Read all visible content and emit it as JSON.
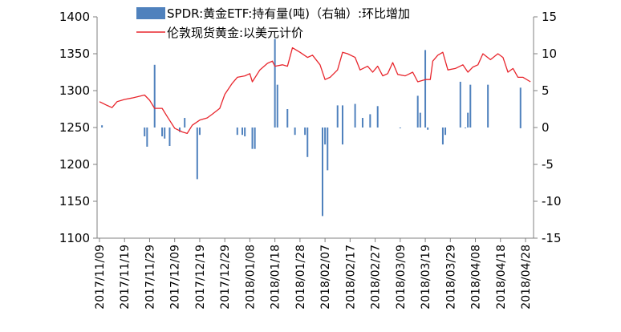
{
  "chart_data": {
    "type": "bar",
    "title": "",
    "xlabel": "",
    "ylabel": "",
    "grid": false,
    "legend_position": "top",
    "left_axis": {
      "ylim": [
        1100,
        1400
      ],
      "ticks": [
        1100,
        1150,
        1200,
        1250,
        1300,
        1350,
        1400
      ]
    },
    "right_axis": {
      "ylim": [
        -15,
        15
      ],
      "ticks": [
        -15,
        -10,
        -5,
        0,
        5,
        10,
        15
      ]
    },
    "x_tick_labels": [
      "2017/11/09",
      "2017/11/19",
      "2017/11/29",
      "2017/12/09",
      "2017/12/19",
      "2017/12/29",
      "2018/01/08",
      "2018/01/18",
      "2018/01/28",
      "2018/02/07",
      "2018/02/17",
      "2018/02/27",
      "2018/03/09",
      "2018/03/19",
      "2018/03/29",
      "2018/04/08",
      "2018/04/18",
      "2018/04/28"
    ],
    "series": [
      {
        "name": "SPDR:黄金ETF:持有量(吨)（右轴）:环比增加",
        "type": "bar",
        "axis": "right",
        "color": "#4f81bd",
        "points": [
          [
            "2017/11/10",
            0.3
          ],
          [
            "2017/11/27",
            -1.2
          ],
          [
            "2017/11/28",
            -2.6
          ],
          [
            "2017/12/01",
            8.5
          ],
          [
            "2017/12/04",
            -1.2
          ],
          [
            "2017/12/05",
            -1.5
          ],
          [
            "2017/12/07",
            -2.5
          ],
          [
            "2017/12/11",
            -0.6
          ],
          [
            "2017/12/13",
            1.3
          ],
          [
            "2017/12/18",
            -7.0
          ],
          [
            "2017/12/19",
            -1.0
          ],
          [
            "2018/01/03",
            -1.0
          ],
          [
            "2018/01/05",
            -1.0
          ],
          [
            "2018/01/06",
            -1.2
          ],
          [
            "2018/01/09",
            -2.9
          ],
          [
            "2018/01/10",
            -2.9
          ],
          [
            "2018/01/18",
            12.0
          ],
          [
            "2018/01/19",
            5.8
          ],
          [
            "2018/01/23",
            2.5
          ],
          [
            "2018/01/26",
            -1.0
          ],
          [
            "2018/01/30",
            -1.0
          ],
          [
            "2018/01/31",
            -4.0
          ],
          [
            "2018/02/06",
            -12.0
          ],
          [
            "2018/02/07",
            -2.3
          ],
          [
            "2018/02/08",
            -5.8
          ],
          [
            "2018/02/12",
            3.0
          ],
          [
            "2018/02/14",
            -2.3
          ],
          [
            "2018/02/14",
            3.0
          ],
          [
            "2018/02/19",
            3.2
          ],
          [
            "2018/02/22",
            1.3
          ],
          [
            "2018/02/25",
            1.8
          ],
          [
            "2018/02/28",
            2.9
          ],
          [
            "2018/03/09",
            -0.1
          ],
          [
            "2018/03/16",
            4.3
          ],
          [
            "2018/03/17",
            2.0
          ],
          [
            "2018/03/19",
            10.5
          ],
          [
            "2018/03/20",
            -0.3
          ],
          [
            "2018/03/26",
            -2.3
          ],
          [
            "2018/03/27",
            -1.0
          ],
          [
            "2018/04/02",
            6.2
          ],
          [
            "2018/04/04",
            -0.1
          ],
          [
            "2018/04/05",
            2.0
          ],
          [
            "2018/04/06",
            5.8
          ],
          [
            "2018/04/13",
            5.8
          ],
          [
            "2018/04/26",
            5.4
          ],
          [
            "2018/04/26",
            -0.1
          ]
        ]
      },
      {
        "name": "伦敦现货黄金:以美元计价",
        "type": "line",
        "axis": "left",
        "color": "#e8262d",
        "points": [
          [
            "2017/11/09",
            1285
          ],
          [
            "2017/11/12",
            1280
          ],
          [
            "2017/11/14",
            1277
          ],
          [
            "2017/11/16",
            1285
          ],
          [
            "2017/11/19",
            1288
          ],
          [
            "2017/11/22",
            1290
          ],
          [
            "2017/11/27",
            1294
          ],
          [
            "2017/11/29",
            1287
          ],
          [
            "2017/12/01",
            1276
          ],
          [
            "2017/12/04",
            1276
          ],
          [
            "2017/12/06",
            1265
          ],
          [
            "2017/12/09",
            1249
          ],
          [
            "2017/12/12",
            1244
          ],
          [
            "2017/12/14",
            1242
          ],
          [
            "2017/12/16",
            1253
          ],
          [
            "2017/12/19",
            1260
          ],
          [
            "2017/12/22",
            1263
          ],
          [
            "2017/12/24",
            1268
          ],
          [
            "2017/12/27",
            1276
          ],
          [
            "2017/12/29",
            1295
          ],
          [
            "2018/01/01",
            1310
          ],
          [
            "2018/01/03",
            1318
          ],
          [
            "2018/01/06",
            1320
          ],
          [
            "2018/01/08",
            1323
          ],
          [
            "2018/01/09",
            1312
          ],
          [
            "2018/01/12",
            1328
          ],
          [
            "2018/01/15",
            1337
          ],
          [
            "2018/01/17",
            1340
          ],
          [
            "2018/01/18",
            1333
          ],
          [
            "2018/01/21",
            1335
          ],
          [
            "2018/01/23",
            1333
          ],
          [
            "2018/01/25",
            1358
          ],
          [
            "2018/01/28",
            1352
          ],
          [
            "2018/01/31",
            1345
          ],
          [
            "2018/02/02",
            1348
          ],
          [
            "2018/02/05",
            1335
          ],
          [
            "2018/02/07",
            1315
          ],
          [
            "2018/02/09",
            1318
          ],
          [
            "2018/02/12",
            1328
          ],
          [
            "2018/02/14",
            1352
          ],
          [
            "2018/02/16",
            1350
          ],
          [
            "2018/02/19",
            1345
          ],
          [
            "2018/02/21",
            1328
          ],
          [
            "2018/02/24",
            1333
          ],
          [
            "2018/02/26",
            1325
          ],
          [
            "2018/02/28",
            1333
          ],
          [
            "2018/03/02",
            1320
          ],
          [
            "2018/03/04",
            1323
          ],
          [
            "2018/03/06",
            1338
          ],
          [
            "2018/03/08",
            1322
          ],
          [
            "2018/03/11",
            1320
          ],
          [
            "2018/03/14",
            1325
          ],
          [
            "2018/03/16",
            1312
          ],
          [
            "2018/03/19",
            1315
          ],
          [
            "2018/03/21",
            1315
          ],
          [
            "2018/03/22",
            1340
          ],
          [
            "2018/03/24",
            1348
          ],
          [
            "2018/03/26",
            1352
          ],
          [
            "2018/03/28",
            1328
          ],
          [
            "2018/03/31",
            1330
          ],
          [
            "2018/04/03",
            1335
          ],
          [
            "2018/04/05",
            1325
          ],
          [
            "2018/04/07",
            1332
          ],
          [
            "2018/04/09",
            1335
          ],
          [
            "2018/04/11",
            1350
          ],
          [
            "2018/04/14",
            1342
          ],
          [
            "2018/04/17",
            1350
          ],
          [
            "2018/04/19",
            1345
          ],
          [
            "2018/04/21",
            1325
          ],
          [
            "2018/04/23",
            1330
          ],
          [
            "2018/04/25",
            1318
          ],
          [
            "2018/04/27",
            1318
          ],
          [
            "2018/04/30",
            1312
          ]
        ]
      }
    ]
  }
}
